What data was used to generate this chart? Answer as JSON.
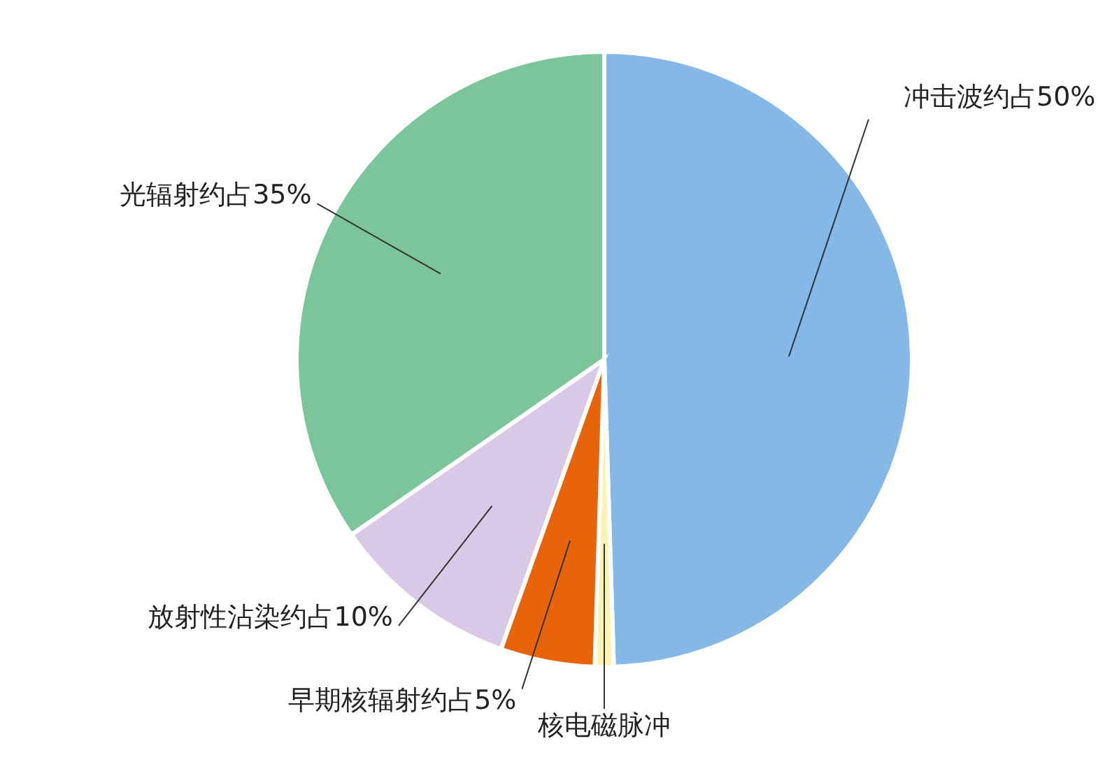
{
  "chart_data": {
    "type": "pie",
    "categories": [
      "冲击波约占50%",
      "核电磁脉冲",
      "早期核辐射约占5%",
      "放射性沾染约占10%",
      "光辐射约占35%"
    ],
    "values": [
      50,
      1,
      5,
      10,
      35
    ],
    "colors": [
      "#85b8e6",
      "#fdf3b0",
      "#e8640a",
      "#d9c9e6",
      "#7cc49a"
    ]
  }
}
